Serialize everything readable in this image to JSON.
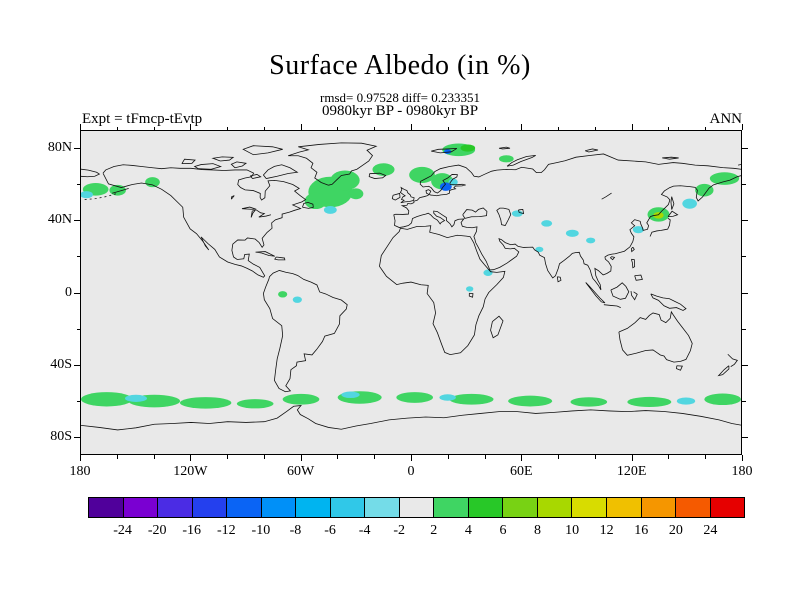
{
  "header": {
    "title": "Surface Albedo (in %)",
    "stats": "rmsd= 0.97528 diff= 0.233351",
    "period": "0980kyr BP - 0980kyr BP",
    "experiment": "Expt = tFmcp-tEvtp",
    "season": "ANN"
  },
  "axes": {
    "lat_labels": [
      {
        "value": 80,
        "label": "80N"
      },
      {
        "value": 40,
        "label": "40N"
      },
      {
        "value": 0,
        "label": "0"
      },
      {
        "value": -40,
        "label": "40S"
      },
      {
        "value": -80,
        "label": "80S"
      }
    ],
    "lon_labels": [
      {
        "value": -180,
        "label": "180"
      },
      {
        "value": -120,
        "label": "120W"
      },
      {
        "value": -60,
        "label": "60W"
      },
      {
        "value": 0,
        "label": "0"
      },
      {
        "value": 60,
        "label": "60E"
      },
      {
        "value": 120,
        "label": "120E"
      },
      {
        "value": 180,
        "label": "180"
      }
    ],
    "lat_minor_step": 20,
    "lon_minor_step": 20
  },
  "colorbar": {
    "labels": [
      "-24",
      "-20",
      "-16",
      "-12",
      "-10",
      "-8",
      "-6",
      "-4",
      "-2",
      "2",
      "4",
      "6",
      "8",
      "10",
      "12",
      "16",
      "20",
      "24"
    ],
    "colors": [
      "#50009b",
      "#7a00d2",
      "#4b2ce4",
      "#2440ee",
      "#0a64f5",
      "#0090f8",
      "#00b4f0",
      "#30c8e8",
      "#74dce8",
      "#e9e9e9",
      "#3fd563",
      "#28c828",
      "#78d214",
      "#a8d800",
      "#d8dc00",
      "#f0c000",
      "#f59600",
      "#f55a00",
      "#e60000"
    ]
  },
  "chart_data": {
    "type": "filled-contour-difference-map",
    "projection": "equirectangular",
    "variable": "Surface Albedo",
    "units": "%",
    "title": "Surface Albedo (in %)",
    "rmsd": 0.97528,
    "diff": 0.233351,
    "experiment": "tFmcp-tEvtp",
    "period": "0980kyr BP - 0980kyr BP",
    "season": "ANN",
    "lon_range": [
      -180,
      180
    ],
    "lat_range": [
      -90,
      90
    ],
    "levels": [
      -24,
      -20,
      -16,
      -12,
      -10,
      -8,
      -6,
      -4,
      -2,
      2,
      4,
      6,
      8,
      10,
      12,
      16,
      20,
      24
    ],
    "background_color": "#e9e9e9",
    "anomalies": [
      {
        "lon": -44,
        "lat": 56,
        "rlon": 12,
        "rlat": 8.5,
        "color": "#3fd563"
      },
      {
        "lon": -36,
        "lat": 62.5,
        "rlon": 8,
        "rlat": 5.5,
        "color": "#3fd563"
      },
      {
        "lon": -52,
        "lat": 51,
        "rlon": 6,
        "rlat": 4.5,
        "color": "#3fd563"
      },
      {
        "lon": -30,
        "lat": 55,
        "rlon": 4,
        "rlat": 3,
        "color": "#3fd563"
      },
      {
        "lon": -44,
        "lat": 46,
        "rlon": 3.5,
        "rlat": 2.2,
        "color": "#52d6e0"
      },
      {
        "lon": -15,
        "lat": 68.5,
        "rlon": 6,
        "rlat": 3.5,
        "color": "#3fd563"
      },
      {
        "lon": 6,
        "lat": 65.5,
        "rlon": 7,
        "rlat": 4.5,
        "color": "#3fd563"
      },
      {
        "lon": 17,
        "lat": 62,
        "rlon": 6,
        "rlat": 4.5,
        "color": "#3fd563"
      },
      {
        "lon": 19,
        "lat": 59,
        "rlon": 3.2,
        "rlat": 2.4,
        "color": "#0a64f5"
      },
      {
        "lon": 23,
        "lat": 61.5,
        "rlon": 2.5,
        "rlat": 2,
        "color": "#52d6e0"
      },
      {
        "lon": 26,
        "lat": 79.5,
        "rlon": 9,
        "rlat": 3.5,
        "color": "#3fd563"
      },
      {
        "lon": 31,
        "lat": 80.5,
        "rlon": 4,
        "rlat": 2,
        "color": "#28c828"
      },
      {
        "lon": 20,
        "lat": 78.5,
        "rlon": 2,
        "rlat": 1.3,
        "color": "#0a64f5"
      },
      {
        "lon": 52,
        "lat": 74.5,
        "rlon": 4,
        "rlat": 2,
        "color": "#3fd563"
      },
      {
        "lon": -172,
        "lat": 57.5,
        "rlon": 7,
        "rlat": 3.5,
        "color": "#3fd563"
      },
      {
        "lon": -177,
        "lat": 54.5,
        "rlon": 3.5,
        "rlat": 2,
        "color": "#52d6e0"
      },
      {
        "lon": -160,
        "lat": 57,
        "rlon": 4.5,
        "rlat": 3,
        "color": "#3fd563"
      },
      {
        "lon": -141,
        "lat": 61.5,
        "rlon": 4,
        "rlat": 2.8,
        "color": "#3fd563"
      },
      {
        "lon": 171,
        "lat": 63.5,
        "rlon": 8,
        "rlat": 3.5,
        "color": "#3fd563"
      },
      {
        "lon": 160,
        "lat": 57,
        "rlon": 5,
        "rlat": 3.5,
        "color": "#3fd563"
      },
      {
        "lon": 152,
        "lat": 49.5,
        "rlon": 4,
        "rlat": 2.8,
        "color": "#52d6e0"
      },
      {
        "lon": 135,
        "lat": 43.5,
        "rlon": 6,
        "rlat": 4,
        "color": "#3fd563"
      },
      {
        "lon": 135,
        "lat": 43,
        "rlon": 2.8,
        "rlat": 1.8,
        "color": "#a8d800"
      },
      {
        "lon": 124,
        "lat": 35,
        "rlon": 3,
        "rlat": 2,
        "color": "#52d6e0"
      },
      {
        "lon": 58,
        "lat": 44,
        "rlon": 3,
        "rlat": 1.8,
        "color": "#52d6e0"
      },
      {
        "lon": 74,
        "lat": 38.5,
        "rlon": 3,
        "rlat": 1.8,
        "color": "#52d6e0"
      },
      {
        "lon": 88,
        "lat": 33,
        "rlon": 3.5,
        "rlat": 2,
        "color": "#52d6e0"
      },
      {
        "lon": 98,
        "lat": 29,
        "rlon": 2.5,
        "rlat": 1.6,
        "color": "#52d6e0"
      },
      {
        "lon": 70,
        "lat": 24,
        "rlon": 2.2,
        "rlat": 1.5,
        "color": "#52d6e0"
      },
      {
        "lon": 42,
        "lat": 11,
        "rlon": 2.5,
        "rlat": 1.8,
        "color": "#52d6e0"
      },
      {
        "lon": 32,
        "lat": 2,
        "rlon": 2,
        "rlat": 1.5,
        "color": "#52d6e0"
      },
      {
        "lon": -70,
        "lat": -1,
        "rlon": 2.5,
        "rlat": 1.8,
        "color": "#3fd563"
      },
      {
        "lon": -62,
        "lat": -4,
        "rlon": 2.5,
        "rlat": 1.8,
        "color": "#52d6e0"
      },
      {
        "lon": -166,
        "lat": -59.5,
        "rlon": 14,
        "rlat": 4,
        "color": "#3fd563"
      },
      {
        "lon": -140,
        "lat": -60.5,
        "rlon": 14,
        "rlat": 3.5,
        "color": "#3fd563"
      },
      {
        "lon": -150,
        "lat": -59,
        "rlon": 6,
        "rlat": 2,
        "color": "#52d6e0"
      },
      {
        "lon": -112,
        "lat": -61.5,
        "rlon": 14,
        "rlat": 3.2,
        "color": "#3fd563"
      },
      {
        "lon": -85,
        "lat": -62,
        "rlon": 10,
        "rlat": 2.6,
        "color": "#3fd563"
      },
      {
        "lon": -60,
        "lat": -59.5,
        "rlon": 10,
        "rlat": 3,
        "color": "#3fd563"
      },
      {
        "lon": -28,
        "lat": -58.5,
        "rlon": 12,
        "rlat": 3.5,
        "color": "#3fd563"
      },
      {
        "lon": -33,
        "lat": -57,
        "rlon": 5,
        "rlat": 1.8,
        "color": "#52d6e0"
      },
      {
        "lon": 2,
        "lat": -58.5,
        "rlon": 10,
        "rlat": 3,
        "color": "#3fd563"
      },
      {
        "lon": 33,
        "lat": -59.5,
        "rlon": 12,
        "rlat": 3,
        "color": "#3fd563"
      },
      {
        "lon": 20,
        "lat": -58.5,
        "rlon": 4.5,
        "rlat": 1.8,
        "color": "#52d6e0"
      },
      {
        "lon": 65,
        "lat": -60.5,
        "rlon": 12,
        "rlat": 3,
        "color": "#3fd563"
      },
      {
        "lon": 97,
        "lat": -61,
        "rlon": 10,
        "rlat": 2.6,
        "color": "#3fd563"
      },
      {
        "lon": 130,
        "lat": -61,
        "rlon": 12,
        "rlat": 2.8,
        "color": "#3fd563"
      },
      {
        "lon": 150,
        "lat": -60.5,
        "rlon": 5,
        "rlat": 2,
        "color": "#52d6e0"
      },
      {
        "lon": 170,
        "lat": -59.5,
        "rlon": 10,
        "rlat": 3.2,
        "color": "#3fd563"
      }
    ]
  }
}
